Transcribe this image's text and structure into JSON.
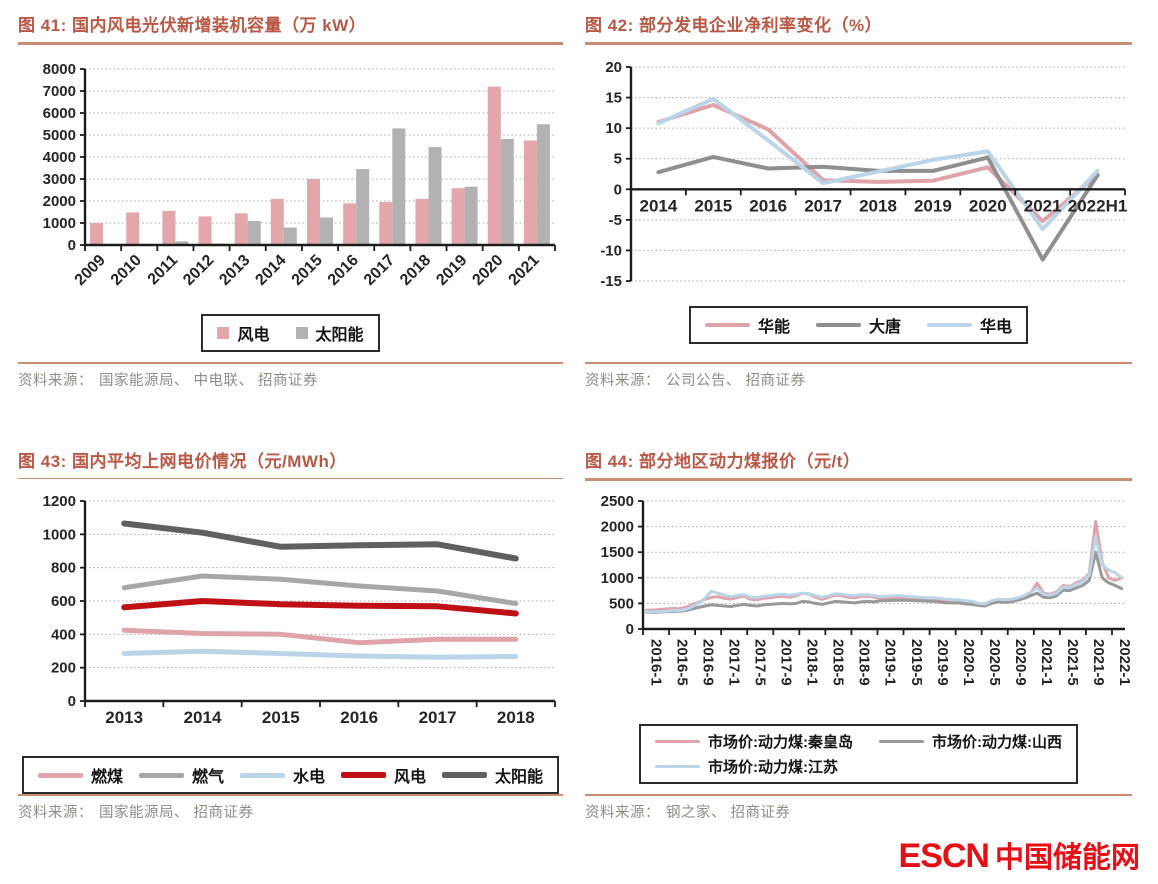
{
  "logo": {
    "text_en": "ESCN",
    "text_cn": "中国储能网",
    "color": "#e60f15"
  },
  "chart_data": [
    {
      "id": "figure-41",
      "type": "bar",
      "title": "图 41:  国内风电光伏新增装机容量（万 kW）",
      "source_label": "资料来源：",
      "source_text": "国家能源局、 中电联、 招商证券",
      "categories": [
        "2009",
        "2010",
        "2011",
        "2012",
        "2013",
        "2014",
        "2015",
        "2016",
        "2017",
        "2018",
        "2019",
        "2020",
        "2021"
      ],
      "series": [
        {
          "name": "风电",
          "color": "#e2a6ab",
          "values": [
            1000,
            1480,
            1550,
            1300,
            1440,
            2100,
            3000,
            1890,
            1950,
            2100,
            2580,
            7200,
            4750
          ]
        },
        {
          "name": "太阳能",
          "color": "#b3b1b1",
          "values": [
            20,
            50,
            170,
            70,
            1090,
            790,
            1250,
            3450,
            5300,
            4450,
            2650,
            4820,
            5490
          ]
        }
      ],
      "ylim": [
        0,
        8000
      ],
      "ytick_step": 1000,
      "grid": true,
      "legend_position": "bottom-center",
      "legend_rows": [
        [
          "风电",
          "太阳能"
        ]
      ]
    },
    {
      "id": "figure-42",
      "type": "line",
      "title": "图 42:  部分发电企业净利率变化（%）",
      "source_label": "资料来源：",
      "source_text": "公司公告、 招商证券",
      "categories": [
        "2014",
        "2015",
        "2016",
        "2017",
        "2018",
        "2019",
        "2020",
        "2021",
        "2022H1"
      ],
      "series": [
        {
          "name": "华能",
          "color": "#dfa3aa",
          "width": 4,
          "values": [
            11.0,
            13.8,
            9.8,
            1.5,
            1.2,
            1.4,
            3.6,
            -5.2,
            2.4
          ]
        },
        {
          "name": "大唐",
          "color": "#8f8f8f",
          "width": 4,
          "values": [
            2.8,
            5.3,
            3.4,
            3.7,
            3.0,
            3.0,
            5.2,
            -11.5,
            2.3
          ]
        },
        {
          "name": "华电",
          "color": "#bad4e8",
          "width": 4,
          "values": [
            10.8,
            14.8,
            8.0,
            1.0,
            2.9,
            4.8,
            6.2,
            -6.5,
            3.0
          ]
        }
      ],
      "ylim": [
        -15,
        20
      ],
      "ytick_step": 5,
      "grid": true,
      "legend_position": "bottom-center",
      "legend_rows": [
        [
          "华能",
          "大唐",
          "华电"
        ]
      ]
    },
    {
      "id": "figure-43",
      "type": "line",
      "title": "图 43:  国内平均上网电价情况（元/MWh）",
      "source_label": "资料来源：",
      "source_text": "国家能源局、 招商证券",
      "categories": [
        "2013",
        "2014",
        "2015",
        "2016",
        "2017",
        "2018"
      ],
      "series": [
        {
          "name": "燃煤",
          "color": "#dfa3aa",
          "width": 5,
          "values": [
            425,
            405,
            400,
            350,
            370,
            370
          ]
        },
        {
          "name": "燃气",
          "color": "#a8a6a6",
          "width": 5,
          "values": [
            680,
            750,
            730,
            690,
            660,
            585
          ]
        },
        {
          "name": "水电",
          "color": "#bad4e8",
          "width": 5,
          "values": [
            285,
            298,
            285,
            270,
            263,
            267
          ]
        },
        {
          "name": "风电",
          "color": "#bf1115",
          "width": 6,
          "values": [
            562,
            600,
            580,
            572,
            568,
            525
          ]
        },
        {
          "name": "太阳能",
          "color": "#606060",
          "width": 6,
          "values": [
            1065,
            1010,
            925,
            935,
            940,
            855
          ]
        }
      ],
      "ylim": [
        0,
        1200
      ],
      "ytick_step": 200,
      "grid": true,
      "legend_position": "bottom-center",
      "legend_rows": [
        [
          "燃煤",
          "燃气",
          "水电",
          "风电",
          "太阳能"
        ]
      ]
    },
    {
      "id": "figure-44",
      "type": "line",
      "title": "图 44:  部分地区动力煤报价（元/t）",
      "source_label": "资料来源：",
      "source_text": "钢之家、 招商证券",
      "x_tick_every": 4,
      "categories": [
        "2016-1",
        "2016-2",
        "2016-3",
        "2016-4",
        "2016-5",
        "2016-6",
        "2016-7",
        "2016-8",
        "2016-9",
        "2016-10",
        "2016-11",
        "2016-12",
        "2017-1",
        "2017-2",
        "2017-3",
        "2017-4",
        "2017-5",
        "2017-6",
        "2017-7",
        "2017-8",
        "2017-9",
        "2017-10",
        "2017-11",
        "2017-12",
        "2018-1",
        "2018-2",
        "2018-3",
        "2018-4",
        "2018-5",
        "2018-6",
        "2018-7",
        "2018-8",
        "2018-9",
        "2018-10",
        "2018-11",
        "2018-12",
        "2019-1",
        "2019-2",
        "2019-3",
        "2019-4",
        "2019-5",
        "2019-6",
        "2019-7",
        "2019-8",
        "2019-9",
        "2019-10",
        "2019-11",
        "2019-12",
        "2020-1",
        "2020-2",
        "2020-3",
        "2020-4",
        "2020-5",
        "2020-6",
        "2020-7",
        "2020-8",
        "2020-9",
        "2020-10",
        "2020-11",
        "2020-12",
        "2021-1",
        "2021-2",
        "2021-3",
        "2021-4",
        "2021-5",
        "2021-6",
        "2021-7",
        "2021-8",
        "2021-9",
        "2021-10",
        "2021-11",
        "2021-12",
        "2022-1",
        "2022-2"
      ],
      "series": [
        {
          "name": "市场价:动力煤:秦皇岛",
          "color": "#dfa3aa",
          "width": 3,
          "values": [
            370,
            365,
            380,
            390,
            400,
            395,
            420,
            470,
            520,
            580,
            620,
            630,
            600,
            580,
            620,
            640,
            580,
            570,
            600,
            610,
            630,
            640,
            620,
            650,
            700,
            680,
            620,
            580,
            620,
            660,
            650,
            620,
            610,
            640,
            640,
            620,
            590,
            600,
            620,
            620,
            610,
            600,
            590,
            580,
            580,
            570,
            550,
            550,
            550,
            530,
            520,
            480,
            470,
            540,
            570,
            560,
            570,
            600,
            640,
            700,
            900,
            700,
            680,
            720,
            850,
            830,
            900,
            950,
            1080,
            2100,
            1300,
            1000,
            950,
            1000
          ]
        },
        {
          "name": "市场价:动力煤:山西",
          "color": "#9a9898",
          "width": 3,
          "values": [
            330,
            325,
            330,
            335,
            340,
            345,
            360,
            390,
            420,
            450,
            470,
            460,
            450,
            440,
            460,
            480,
            460,
            450,
            470,
            480,
            490,
            500,
            490,
            500,
            540,
            530,
            500,
            480,
            510,
            540,
            530,
            520,
            510,
            530,
            540,
            530,
            550,
            555,
            560,
            565,
            560,
            555,
            550,
            545,
            540,
            530,
            510,
            510,
            510,
            490,
            480,
            460,
            450,
            500,
            530,
            520,
            530,
            560,
            600,
            650,
            700,
            620,
            610,
            650,
            760,
            750,
            800,
            850,
            950,
            1500,
            1000,
            900,
            850,
            790
          ]
        },
        {
          "name": "市场价:动力煤:江苏",
          "color": "#bad4e8",
          "width": 3,
          "values": [
            340,
            335,
            340,
            345,
            355,
            360,
            380,
            430,
            500,
            600,
            740,
            700,
            660,
            630,
            660,
            670,
            620,
            610,
            640,
            650,
            670,
            680,
            660,
            680,
            700,
            690,
            650,
            620,
            650,
            690,
            680,
            660,
            650,
            670,
            670,
            650,
            630,
            640,
            650,
            650,
            640,
            630,
            620,
            610,
            610,
            600,
            580,
            570,
            570,
            550,
            540,
            500,
            490,
            550,
            580,
            570,
            580,
            610,
            650,
            720,
            800,
            680,
            660,
            700,
            820,
            810,
            870,
            920,
            1050,
            1800,
            1250,
            1150,
            1100,
            1000
          ]
        }
      ],
      "ylim": [
        0,
        2500
      ],
      "ytick_step": 500,
      "grid": true,
      "legend_position": "bottom-center",
      "legend_rows": [
        [
          "市场价:动力煤:秦皇岛",
          "市场价:动力煤:山西"
        ],
        [
          "市场价:动力煤:江苏"
        ]
      ]
    }
  ]
}
